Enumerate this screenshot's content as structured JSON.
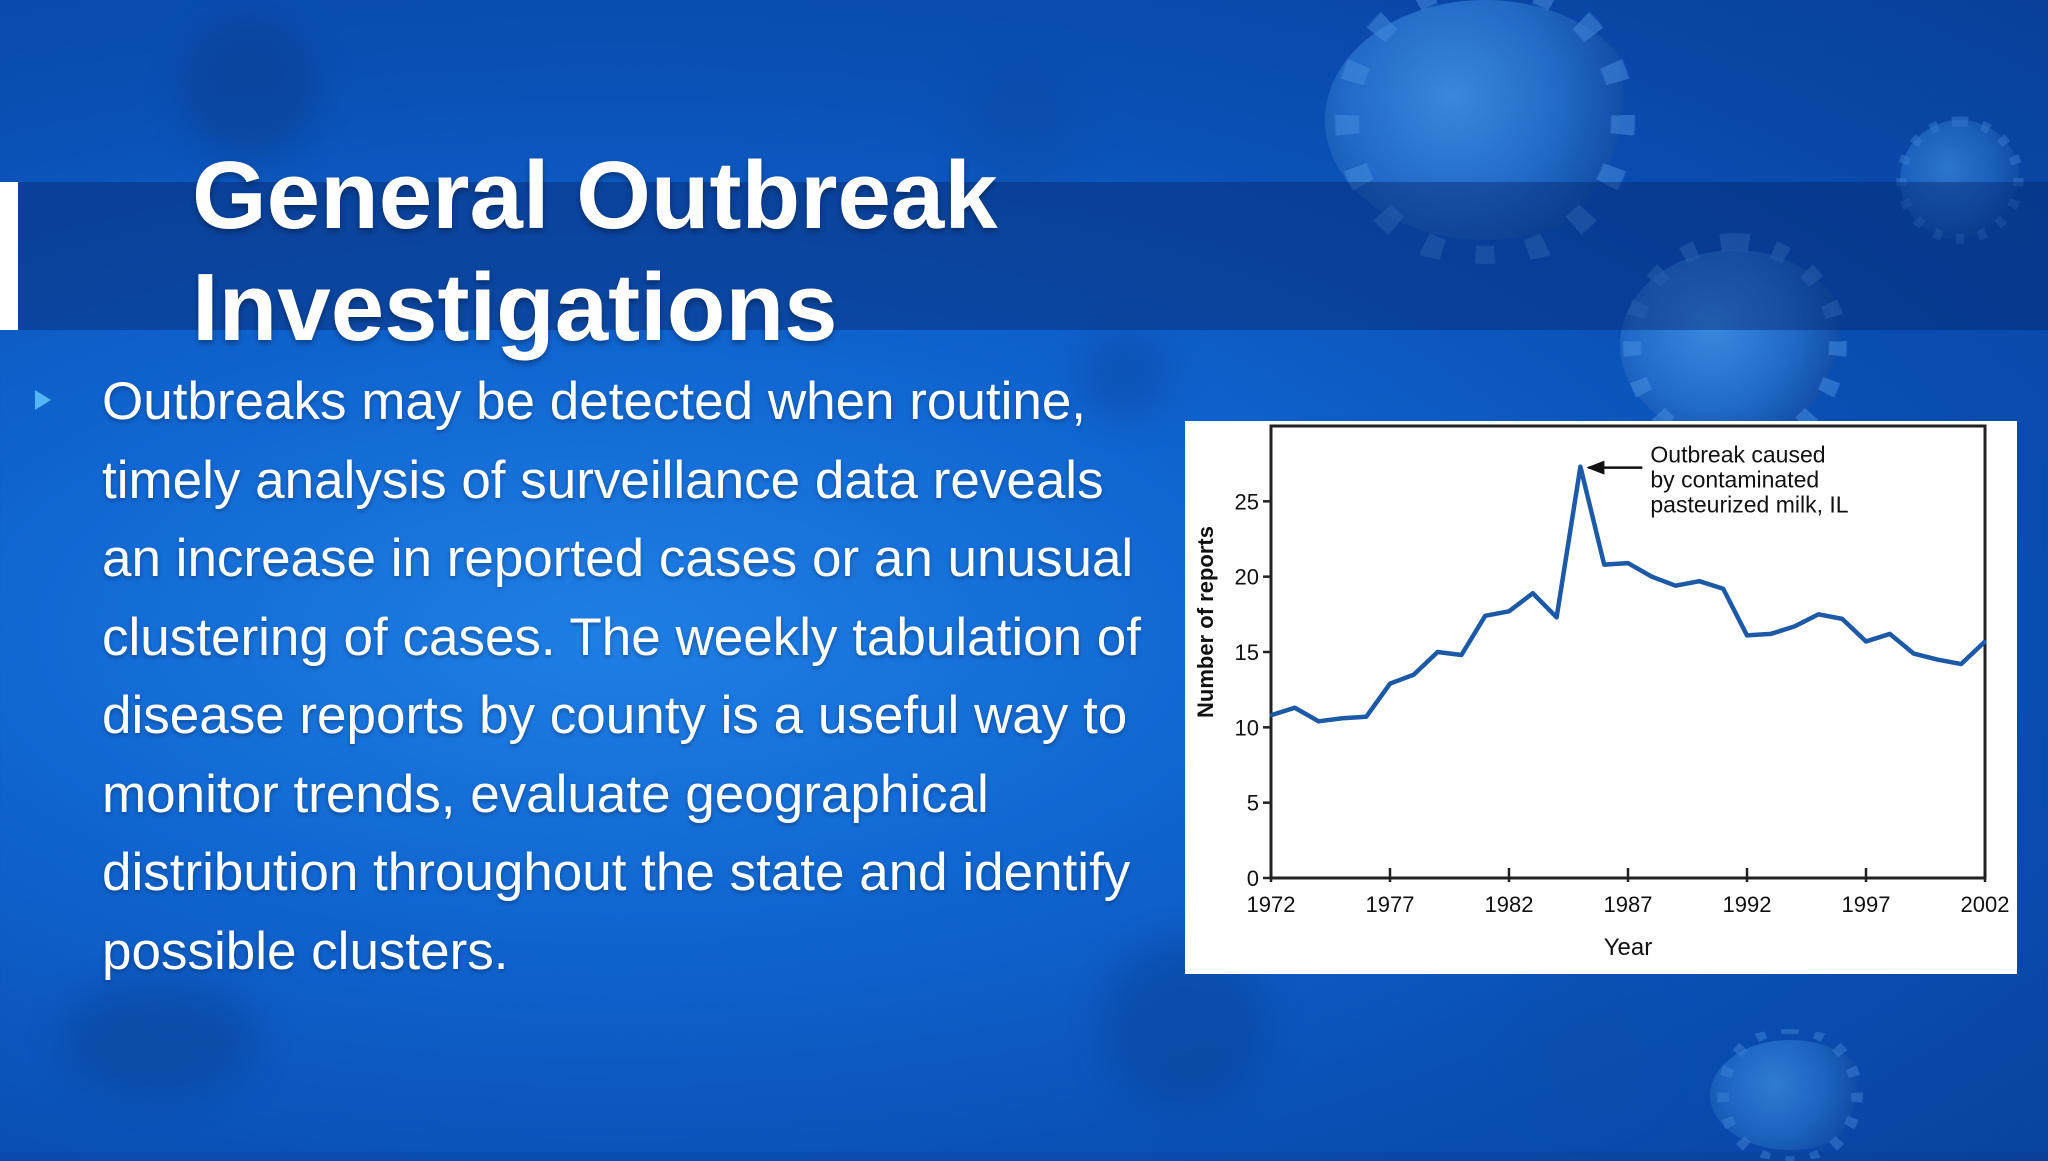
{
  "slide": {
    "title_line1": "General Outbreak",
    "title_line2": "Investigations",
    "body": "Outbreaks may be detected when routine, timely analysis of surveillance data reveals an increase in reported cases or an unusual clustering of cases. The weekly tabulation of disease reports by county is a useful way to monitor trends, evaluate geographical distribution throughout the state and identify possible clusters.",
    "bullet_icon": "triangle-bullet",
    "colors": {
      "accent": "#54b6f3",
      "title": "#ffffff",
      "background": "#0f63cf",
      "line": "#1c5aa8"
    }
  },
  "chart_data": {
    "type": "line",
    "xlabel": "Year",
    "ylabel": "Number of reports",
    "x_ticks": [
      "1972",
      "1977",
      "1982",
      "1987",
      "1992",
      "1997",
      "2002"
    ],
    "y_ticks": [
      "0",
      "5",
      "10",
      "15",
      "20",
      "25"
    ],
    "xlim": [
      1972,
      2002
    ],
    "ylim": [
      0,
      30
    ],
    "grid": false,
    "annotation": {
      "text_lines": [
        "Outbreak caused",
        "by contaminated",
        "pasteurized milk, IL"
      ],
      "x": 1985,
      "y": 27.3
    },
    "series": [
      {
        "x": [
          1972,
          1973,
          1974,
          1975,
          1976,
          1977,
          1978,
          1979,
          1980,
          1981,
          1982,
          1983,
          1984,
          1985,
          1986,
          1987,
          1988,
          1989,
          1990,
          1991,
          1992,
          1993,
          1994,
          1995,
          1996,
          1997,
          1998,
          1999,
          2000,
          2001,
          2002
        ],
        "y": [
          10.8,
          11.3,
          10.4,
          10.6,
          10.7,
          12.9,
          13.5,
          15.0,
          14.8,
          17.4,
          17.7,
          18.9,
          17.3,
          27.3,
          20.8,
          20.9,
          20.0,
          19.4,
          19.7,
          19.2,
          16.1,
          16.2,
          16.7,
          17.5,
          17.2,
          15.7,
          16.2,
          14.9,
          14.5,
          14.2,
          15.7
        ]
      }
    ]
  }
}
